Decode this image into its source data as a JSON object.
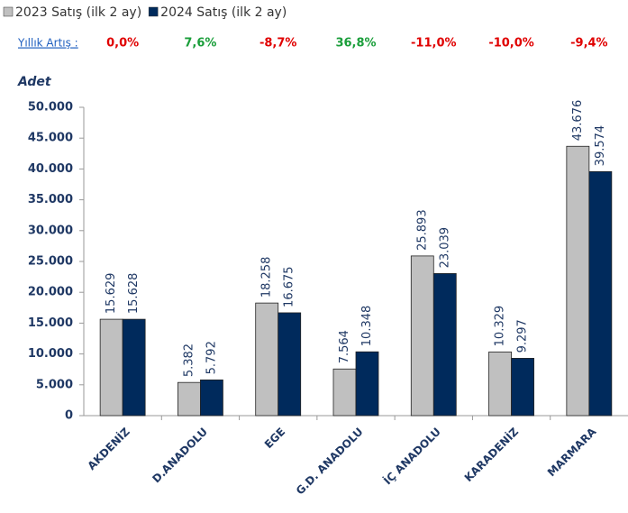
{
  "chart_data": {
    "type": "bar",
    "y_label": "Adet",
    "categories": [
      "AKDENİZ",
      "D.ANADOLU",
      "EGE",
      "G.D. ANADOLU",
      "İÇ ANADOLU",
      "KARADENİZ",
      "MARMARA"
    ],
    "series": [
      {
        "name": "2023 Satış (ilk 2 ay)",
        "color": "#c0c0c0",
        "values": [
          15629,
          5382,
          18258,
          7564,
          25893,
          10329,
          43676
        ],
        "value_labels": [
          "15.629",
          "5.382",
          "18.258",
          "7.564",
          "25.893",
          "10.329",
          "43.676"
        ]
      },
      {
        "name": "2024 Satış (ilk 2 ay)",
        "color": "#002a5c",
        "values": [
          15628,
          5792,
          16675,
          10348,
          23039,
          9297,
          39574
        ],
        "value_labels": [
          "15.628",
          "5.792",
          "16.675",
          "10.348",
          "23.039",
          "9.297",
          "39.574"
        ]
      }
    ],
    "annotations": {
      "label": "Yıllık Artış :",
      "values": [
        "0,0%",
        "7,6%",
        "-8,7%",
        "36,8%",
        "-11,0%",
        "-10,0%",
        "-9,4%"
      ],
      "colors": [
        "#e00000",
        "#1a9e3a",
        "#e00000",
        "#1a9e3a",
        "#e00000",
        "#e00000",
        "#e00000"
      ]
    },
    "ylim": [
      0,
      50000
    ],
    "yticks": [
      {
        "value": 0,
        "label": "0"
      },
      {
        "value": 5000,
        "label": "5.000"
      },
      {
        "value": 10000,
        "label": "10.000"
      },
      {
        "value": 15000,
        "label": "15.000"
      },
      {
        "value": 20000,
        "label": "20.000"
      },
      {
        "value": 25000,
        "label": "25.000"
      },
      {
        "value": 30000,
        "label": "30.000"
      },
      {
        "value": 35000,
        "label": "35.000"
      },
      {
        "value": 40000,
        "label": "40.000"
      },
      {
        "value": 45000,
        "label": "45.000"
      },
      {
        "value": 50000,
        "label": "50.000"
      }
    ],
    "grid": false
  }
}
